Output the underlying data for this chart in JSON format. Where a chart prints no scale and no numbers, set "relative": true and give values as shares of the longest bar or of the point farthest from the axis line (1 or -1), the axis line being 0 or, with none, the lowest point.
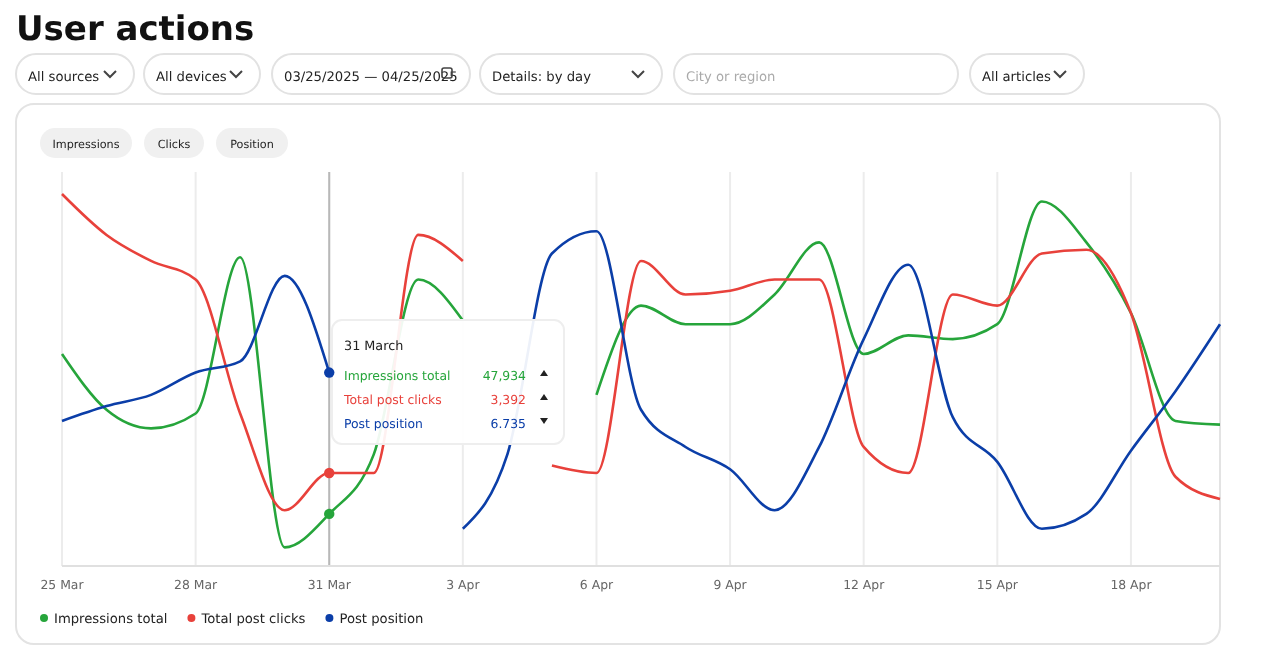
{
  "chart_data": {
    "type": "line",
    "title": "User actions",
    "relative": true,
    "x": [
      "2025-03-25",
      "2025-03-26",
      "2025-03-27",
      "2025-03-28",
      "2025-03-29",
      "2025-03-30",
      "2025-03-31",
      "2025-04-01",
      "2025-04-02",
      "2025-04-03",
      "2025-04-04",
      "2025-04-05",
      "2025-04-06",
      "2025-04-07",
      "2025-04-08",
      "2025-04-09",
      "2025-04-10",
      "2025-04-11",
      "2025-04-12",
      "2025-04-13",
      "2025-04-14",
      "2025-04-15",
      "2025-04-16",
      "2025-04-17",
      "2025-04-18",
      "2025-04-19",
      "2025-04-20"
    ],
    "xlim": [
      "2025-03-25",
      "2025-04-20"
    ],
    "xticks": [
      {
        "value": "2025-03-25",
        "label": "25 Mar"
      },
      {
        "value": "2025-03-28",
        "label": "28 Mar"
      },
      {
        "value": "2025-03-31",
        "label": "31 Mar"
      },
      {
        "value": "2025-04-03",
        "label": "3 Apr"
      },
      {
        "value": "2025-04-06",
        "label": "6 Apr"
      },
      {
        "value": "2025-04-09",
        "label": "9 Apr"
      },
      {
        "value": "2025-04-12",
        "label": "12 Apr"
      },
      {
        "value": "2025-04-15",
        "label": "15 Apr"
      },
      {
        "value": "2025-04-18",
        "label": "18 Apr"
      }
    ],
    "grid": "x",
    "legend": "bottom left",
    "tick_labels": "x",
    "series": [
      {
        "name": "Impressions total",
        "color": "#26a53b",
        "values": [
          0.57,
          0.42,
          0.37,
          0.41,
          0.83,
          0.05,
          0.14,
          0.3,
          0.77,
          0.66,
          null,
          null,
          0.46,
          0.7,
          0.65,
          0.65,
          0.73,
          0.87,
          0.57,
          0.62,
          0.61,
          0.65,
          0.98,
          0.87,
          0.68,
          0.39,
          0.38
        ]
      },
      {
        "name": "Total post clicks",
        "color": "#e8413b",
        "values": [
          1,
          0.89,
          0.82,
          0.77,
          0.41,
          0.15,
          0.25,
          0.25,
          0.89,
          0.82,
          null,
          0.27,
          0.25,
          0.82,
          0.73,
          0.74,
          0.77,
          0.77,
          0.32,
          0.25,
          0.73,
          0.7,
          0.84,
          0.85,
          0.68,
          0.24,
          0.18
        ]
      },
      {
        "name": "Post position",
        "color": "#0b3ea8",
        "values": [
          0.39,
          0.43,
          0.46,
          0.52,
          0.55,
          0.78,
          0.52,
          null,
          null,
          0.1,
          0.3,
          0.84,
          0.9,
          0.42,
          0.32,
          0.26,
          0.15,
          0.32,
          0.61,
          0.81,
          0.4,
          0.28,
          0.1,
          0.14,
          0.31,
          0.47,
          0.65
        ]
      }
    ],
    "ref_lines": [
      {
        "axis": "x",
        "value": "2025-03-31",
        "color": "#b8b8b8"
      }
    ],
    "annotations": [
      "All sources",
      "All devices",
      "03/25/2025 — 04/25/2025",
      "Details: by day",
      "City or region",
      "All articles",
      "Impressions",
      "Clicks",
      "Position",
      "31 March",
      "Impressions total",
      "Total post clicks",
      "Post position",
      "47,934",
      "3,392",
      "6.735"
    ]
  }
}
